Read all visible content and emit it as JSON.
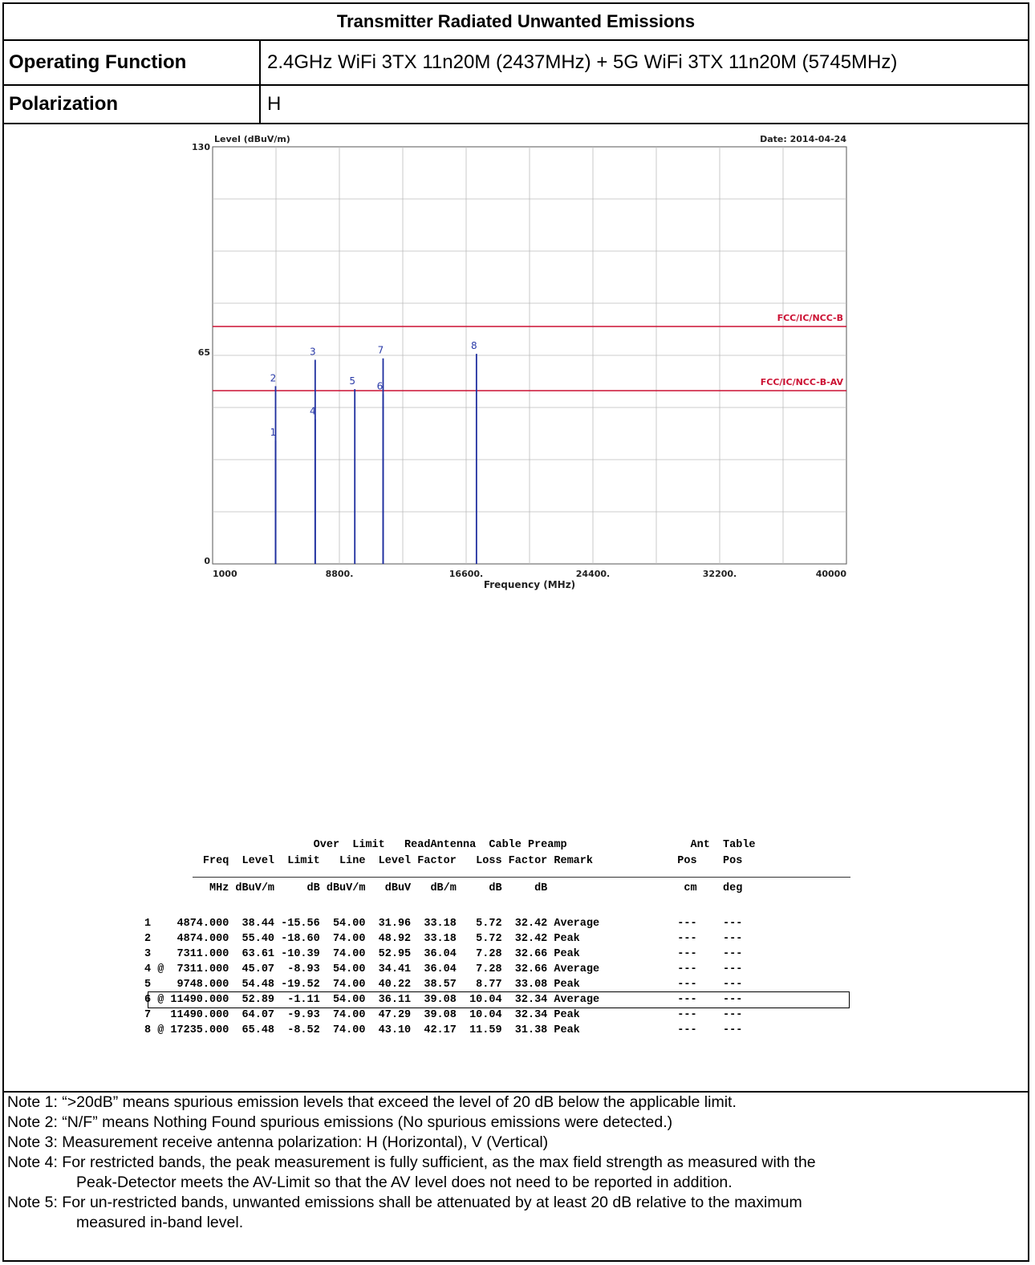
{
  "header": {
    "title": "Transmitter Radiated Unwanted Emissions",
    "operating_function_label": "Operating Function",
    "operating_function_value": "2.4GHz WiFi 3TX 11n20M (2437MHz) + 5G WiFi 3TX 11n20M (5745MHz)",
    "polarization_label": "Polarization",
    "polarization_value": "H"
  },
  "chart_data": {
    "type": "line",
    "ylabel": "Level (dBuV/m)",
    "xlabel": "Frequency (MHz)",
    "date": "Date: 2014-04-24",
    "xlim": [
      1000,
      40000
    ],
    "ylim": [
      0,
      130
    ],
    "x_tick_labels": [
      "1000",
      "8800.",
      "16600.",
      "24400.",
      "32200.",
      "40000"
    ],
    "x_ticks": [
      1000,
      8800,
      16600,
      24400,
      32200,
      40000
    ],
    "y_tick_labels": [
      "0",
      "65",
      "130"
    ],
    "y_ticks": [
      0,
      65,
      130
    ],
    "grid": true,
    "limit_lines": [
      {
        "name": "FCC/IC/NCC-B",
        "value": 74,
        "color": "#cc1133"
      },
      {
        "name": "FCC/IC/NCC-B-AV",
        "value": 54,
        "color": "#cc1133"
      }
    ],
    "markers": [
      {
        "label": "1",
        "x": 4874,
        "y": 38.44
      },
      {
        "label": "2",
        "x": 4874,
        "y": 55.4
      },
      {
        "label": "3",
        "x": 7311,
        "y": 63.61
      },
      {
        "label": "4",
        "x": 7311,
        "y": 45.07
      },
      {
        "label": "5",
        "x": 9748,
        "y": 54.48
      },
      {
        "label": "6",
        "x": 11490,
        "y": 52.89
      },
      {
        "label": "7",
        "x": 11490,
        "y": 64.07
      },
      {
        "label": "8",
        "x": 17235,
        "y": 65.48
      }
    ]
  },
  "results": {
    "header_lines": [
      "                          Over  Limit   ReadAntenna  Cable Preamp                   Ant  Table",
      "         Freq  Level  Limit   Line  Level Factor   Loss Factor Remark             Pos    Pos",
      "          MHz dBuV/m     dB dBuV/m   dBuV   dB/m     dB     dB                     cm    deg"
    ],
    "rows": [
      "1    4874.000  38.44 -15.56  54.00  31.96  33.18   5.72  32.42 Average            ---    ---",
      "2    4874.000  55.40 -18.60  74.00  48.92  33.18   5.72  32.42 Peak               ---    ---",
      "3    7311.000  63.61 -10.39  74.00  52.95  36.04   7.28  32.66 Peak               ---    ---",
      "4 @  7311.000  45.07  -8.93  54.00  34.41  36.04   7.28  32.66 Average            ---    ---",
      "5    9748.000  54.48 -19.52  74.00  40.22  38.57   8.77  33.08 Peak               ---    ---",
      "6 @ 11490.000  52.89  -1.11  54.00  36.11  39.08  10.04  32.34 Average            ---    ---",
      "7   11490.000  64.07  -9.93  74.00  47.29  39.08  10.04  32.34 Peak               ---    ---",
      "8 @ 17235.000  65.48  -8.52  74.00  43.10  42.17  11.59  31.38 Peak               ---    ---"
    ]
  },
  "notes": [
    "Note 1: “>20dB” means spurious emission levels that exceed the level of 20 dB below the applicable limit.",
    "Note 2: “N/F” means Nothing Found spurious emissions (No spurious emissions were detected.)",
    "Note 3: Measurement receive antenna polarization: H (Horizontal), V (Vertical)",
    "Note 4: For restricted bands, the peak measurement is fully sufficient, as the max field strength as measured with the",
    "Peak-Detector meets the AV-Limit so that the AV level does not need to be reported in addition.",
    "Note 5: For un-restricted bands, unwanted emissions shall be attenuated by at least 20 dB relative to the maximum",
    "measured in-band level."
  ]
}
